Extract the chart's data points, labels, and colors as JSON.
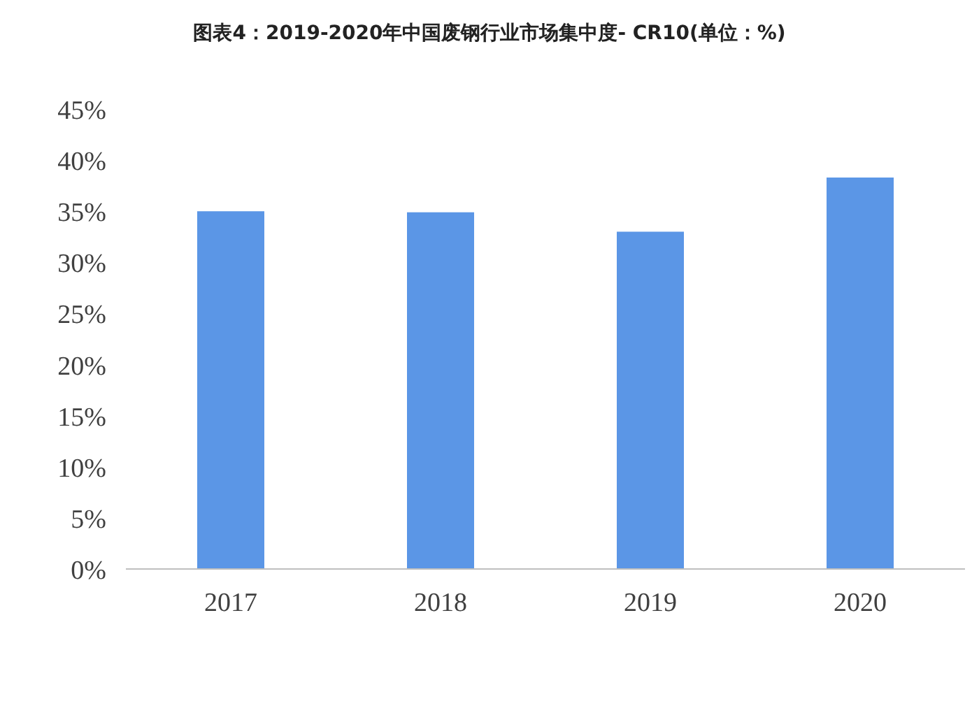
{
  "chart_data": {
    "type": "bar",
    "title": "图表4：2019-2020年中国废钢行业市场集中度- CR10(单位：%)",
    "categories": [
      "2017",
      "2018",
      "2019",
      "2020"
    ],
    "series": [
      {
        "color": "#5b96e6",
        "values": [
          35.0,
          34.9,
          33.0,
          38.3
        ]
      }
    ],
    "ylim": [
      0,
      45
    ],
    "yticks": [
      {
        "value": 0,
        "label": "0%"
      },
      {
        "value": 5,
        "label": "5%"
      },
      {
        "value": 10,
        "label": "10%"
      },
      {
        "value": 15,
        "label": "15%"
      },
      {
        "value": 20,
        "label": "20%"
      },
      {
        "value": 25,
        "label": "25%"
      },
      {
        "value": 30,
        "label": "30%"
      },
      {
        "value": 35,
        "label": "35%"
      },
      {
        "value": 40,
        "label": "40%"
      },
      {
        "value": 45,
        "label": "45%"
      }
    ],
    "grid": false
  }
}
